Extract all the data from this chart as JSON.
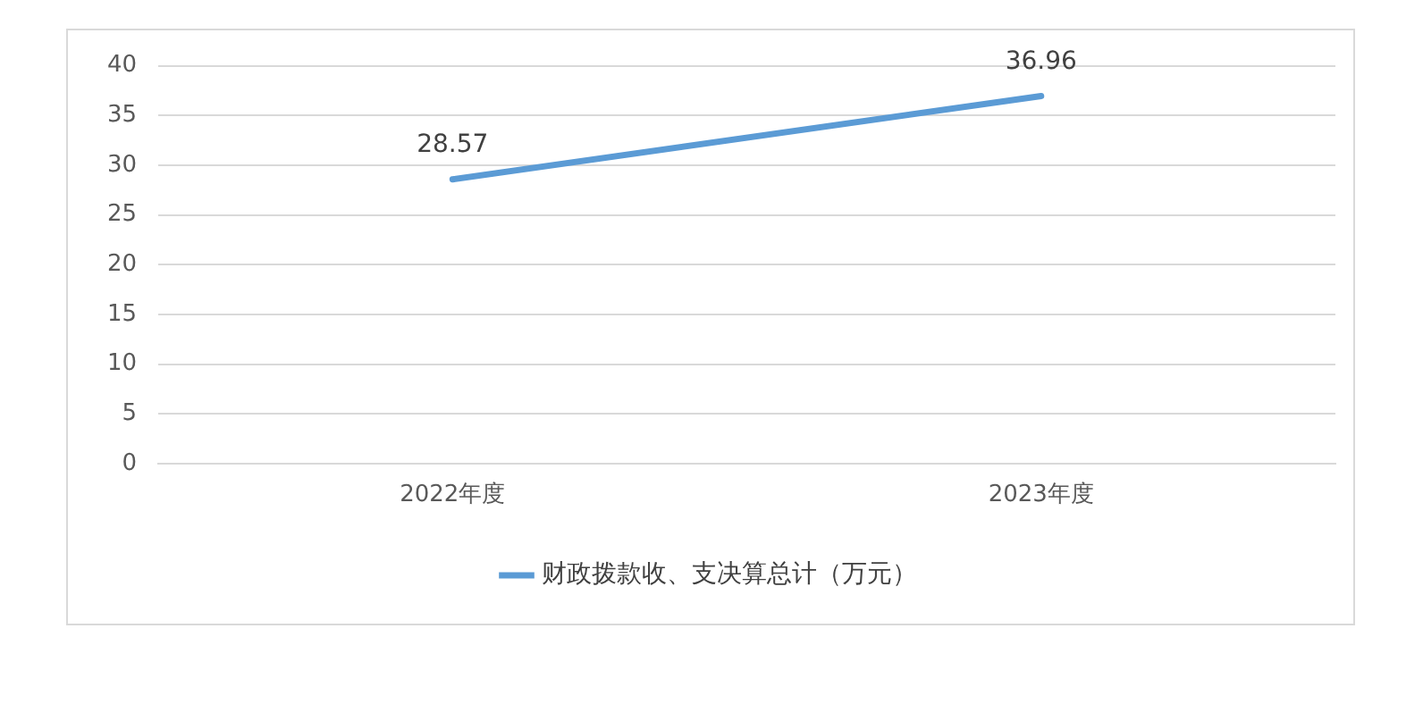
{
  "chart_data": {
    "type": "line",
    "categories": [
      "2022年度",
      "2023年度"
    ],
    "series": [
      {
        "name": "财政拨款收、支决算总计（万元）",
        "color": "#5b9bd5",
        "values": [
          28.57,
          36.96
        ]
      }
    ],
    "ylim": [
      0,
      40
    ],
    "yticks": [
      0,
      5,
      10,
      15,
      20,
      25,
      30,
      35,
      40
    ],
    "grid": "y",
    "legend": "bottom",
    "marker": "none",
    "line_style": "solid",
    "data_labels": true
  }
}
